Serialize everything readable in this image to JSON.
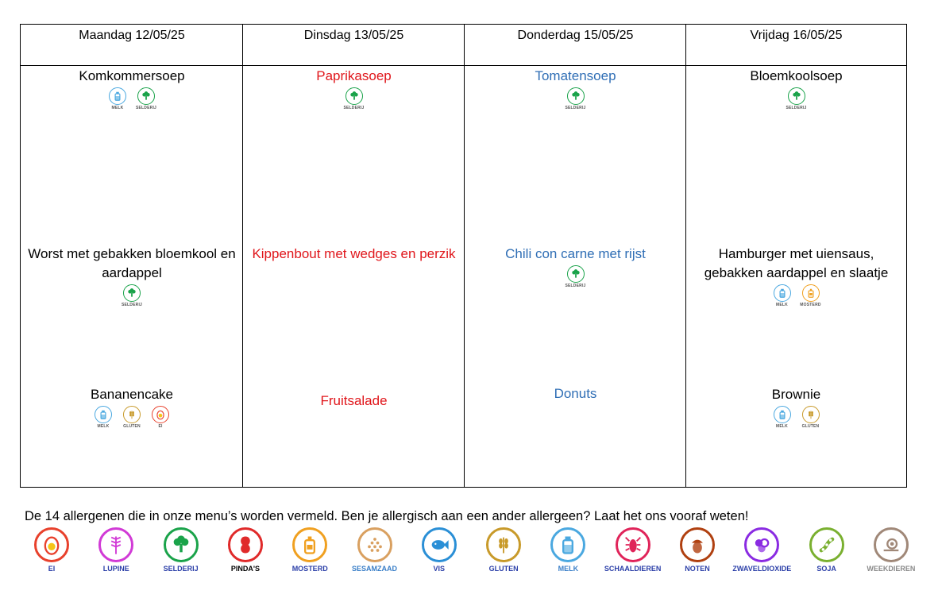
{
  "days": [
    {
      "header": "Maandag 12/05/25",
      "soup": {
        "text": "Komkommersoep",
        "allergens": [
          {
            "name": "MELK",
            "icon": "milk-bottle-icon",
            "color": "#4aa8e0"
          },
          {
            "name": "SELDERIJ",
            "icon": "broccoli-icon",
            "color": "#1aa34a"
          }
        ]
      },
      "main": {
        "text": "Worst met gebakken bloemkool en aardappel",
        "allergens": [
          {
            "name": "SELDERIJ",
            "icon": "broccoli-icon",
            "color": "#1aa34a"
          }
        ]
      },
      "dessert": {
        "text": "Bananencake",
        "allergens": [
          {
            "name": "MELK",
            "icon": "milk-bottle-icon",
            "color": "#4aa8e0"
          },
          {
            "name": "GLUTEN",
            "icon": "wheat-icon",
            "color": "#c89a2a"
          },
          {
            "name": "EI",
            "icon": "egg-icon",
            "color": "#e8412c"
          }
        ]
      }
    },
    {
      "header": "Dinsdag 13/05/25",
      "soup": {
        "text": "Paprikasoep",
        "allergens": [
          {
            "name": "SELDERIJ",
            "icon": "broccoli-icon",
            "color": "#1aa34a"
          }
        ]
      },
      "main": {
        "text": "Kippenbout met wedges en perzik",
        "allergens": []
      },
      "dessert": {
        "text": "Fruitsalade",
        "allergens": []
      }
    },
    {
      "header": "Donderdag 15/05/25",
      "soup": {
        "text": "Tomatensoep",
        "allergens": [
          {
            "name": "SELDERIJ",
            "icon": "broccoli-icon",
            "color": "#1aa34a"
          }
        ]
      },
      "main": {
        "text": "Chili con carne met rijst",
        "allergens": [
          {
            "name": "SELDERIJ",
            "icon": "broccoli-icon",
            "color": "#1aa34a"
          }
        ]
      },
      "dessert": {
        "text": "Donuts",
        "allergens": []
      }
    },
    {
      "header": "Vrijdag 16/05/25",
      "soup": {
        "text": "Bloemkoolsoep",
        "allergens": [
          {
            "name": "SELDERIJ",
            "icon": "broccoli-icon",
            "color": "#1aa34a"
          }
        ]
      },
      "main": {
        "text": "Hamburger met uiensaus, gebakken aardappel en slaatje",
        "allergens": [
          {
            "name": "MELK",
            "icon": "milk-bottle-icon",
            "color": "#4aa8e0"
          },
          {
            "name": "MOSTERD",
            "icon": "mustard-bottle-icon",
            "color": "#f0a020"
          }
        ]
      },
      "dessert": {
        "text": "Brownie",
        "allergens": [
          {
            "name": "MELK",
            "icon": "milk-bottle-icon",
            "color": "#4aa8e0"
          },
          {
            "name": "GLUTEN",
            "icon": "wheat-icon",
            "color": "#c89a2a"
          }
        ]
      }
    }
  ],
  "colors": {
    "red": "#e0161b",
    "blue": "#2f6eb5"
  },
  "footer": {
    "text": "De 14 allergenen die in onze menu’s worden vermeld. Ben je allergisch aan een ander allergeen? Laat het ons vooraf weten!"
  },
  "legend": [
    {
      "name": "EI",
      "icon": "egg-icon",
      "color": "#e8412c",
      "label_color": "#2b3fa8"
    },
    {
      "name": "LUPINE",
      "icon": "lupine-icon",
      "color": "#d13ad6",
      "label_color": "#2b3fa8"
    },
    {
      "name": "SELDERIJ",
      "icon": "broccoli-icon",
      "color": "#1aa34a",
      "label_color": "#2b3fa8"
    },
    {
      "name": "PINDA'S",
      "icon": "peanut-icon",
      "color": "#e02a2a",
      "label_color": "#000000"
    },
    {
      "name": "MOSTERD",
      "icon": "mustard-bottle-icon",
      "color": "#f0a020",
      "label_color": "#2b3fa8"
    },
    {
      "name": "SESAMZAAD",
      "icon": "sesame-icon",
      "color": "#d9a060",
      "label_color": "#3a7fc8"
    },
    {
      "name": "VIS",
      "icon": "fish-icon",
      "color": "#2a8fd6",
      "label_color": "#2b3fa8"
    },
    {
      "name": "GLUTEN",
      "icon": "wheat-icon",
      "color": "#c89a2a",
      "label_color": "#2b3fa8"
    },
    {
      "name": "MELK",
      "icon": "milk-bottle-icon",
      "color": "#4aa8e0",
      "label_color": "#3a7fc8"
    },
    {
      "name": "SCHAALDIEREN",
      "icon": "lobster-icon",
      "color": "#e0245a",
      "label_color": "#2b3fa8"
    },
    {
      "name": "NOTEN",
      "icon": "acorn-icon",
      "color": "#b04010",
      "label_color": "#2b3fa8"
    },
    {
      "name": "ZWAVELDIOXIDE",
      "icon": "molecule-icon",
      "color": "#8a2be2",
      "label_color": "#2b3fa8"
    },
    {
      "name": "SOJA",
      "icon": "soy-bean-icon",
      "color": "#7ab030",
      "label_color": "#2b3fa8"
    },
    {
      "name": "WEEKDIEREN",
      "icon": "snail-icon",
      "color": "#a08878",
      "label_color": "#8a8a8a"
    }
  ]
}
